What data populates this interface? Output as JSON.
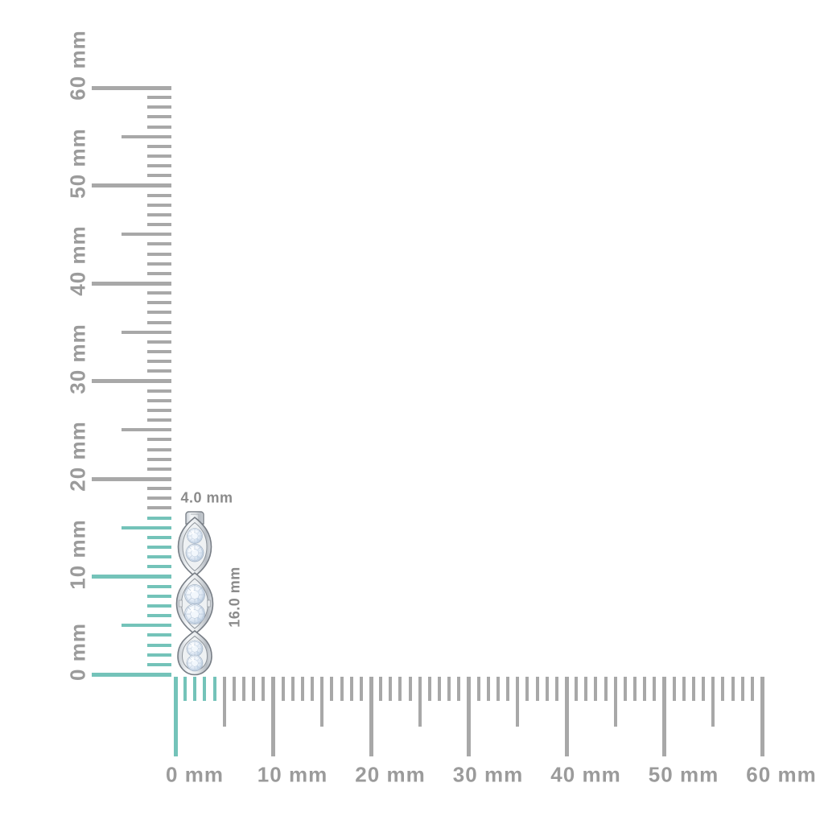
{
  "product": {
    "width_label": "4.0 mm",
    "height_label": "16.0 mm"
  },
  "vertical_ruler": {
    "unit": "mm",
    "min_mm": 0,
    "max_mm": 60,
    "minor_step_mm": 1,
    "half_step_mm": 5,
    "major_step_mm": 10,
    "highlight_to_mm": 16,
    "labels": [
      "0 mm",
      "10 mm",
      "20 mm",
      "30 mm",
      "40 mm",
      "50 mm",
      "60 mm"
    ]
  },
  "horizontal_ruler": {
    "unit": "mm",
    "min_mm": 0,
    "max_mm": 60,
    "minor_step_mm": 1,
    "half_step_mm": 5,
    "major_step_mm": 10,
    "highlight_to_mm": 4,
    "labels": [
      "0 mm",
      "10 mm",
      "20 mm",
      "30 mm",
      "40 mm",
      "50 mm",
      "60 mm"
    ]
  },
  "colors": {
    "background": "#ffffff",
    "tick_gray": "#a8a8a8",
    "label_gray": "#9b9b9b",
    "highlight_teal": "#74c3b9",
    "dimension_text": "#8b8b8b"
  }
}
